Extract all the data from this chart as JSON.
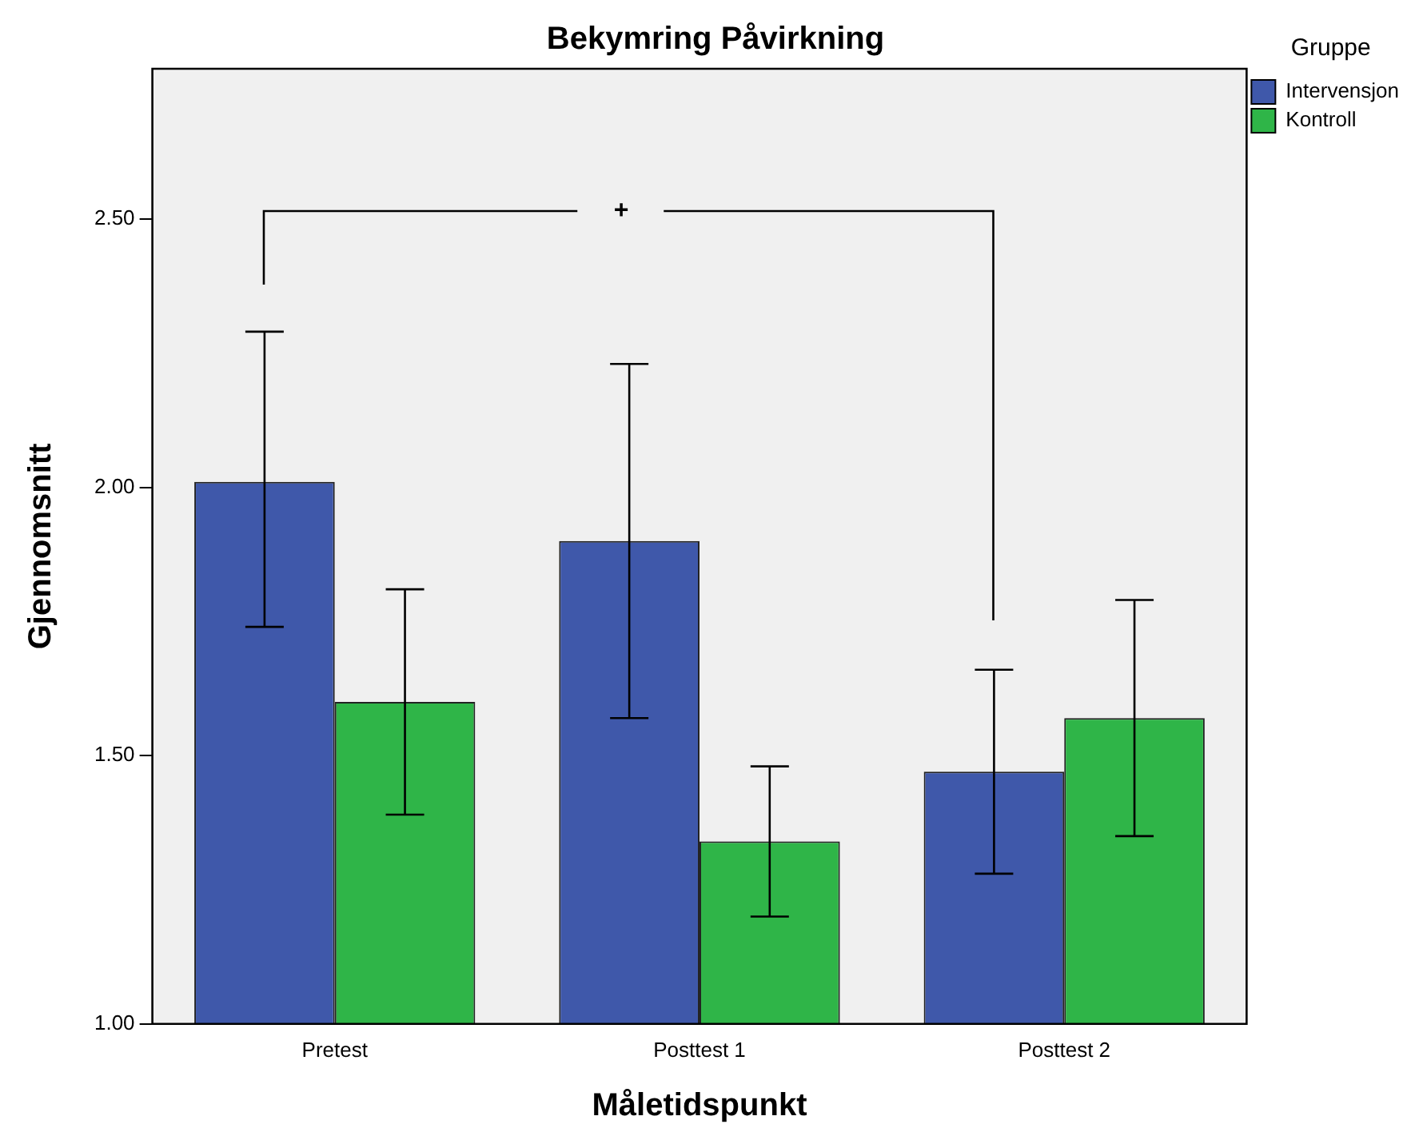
{
  "chart_data": {
    "type": "bar",
    "title": "Bekymring Påvirkning",
    "xlabel": "Måletidspunkt",
    "ylabel": "Gjennomsnitt",
    "legend_title": "Gruppe",
    "legend": "top right",
    "categories": [
      "Pretest",
      "Posttest 1",
      "Posttest 2"
    ],
    "series": [
      {
        "name": "Intervensjon",
        "color": "#3f58aa",
        "values": [
          2.01,
          1.9,
          1.47
        ],
        "errors": [
          [
            1.74,
            2.29
          ],
          [
            1.57,
            2.23
          ],
          [
            1.28,
            1.66
          ]
        ]
      },
      {
        "name": "Kontroll",
        "color": "#2fb548",
        "values": [
          1.6,
          1.34,
          1.57
        ],
        "errors": [
          [
            1.39,
            1.81
          ],
          [
            1.2,
            1.48
          ],
          [
            1.35,
            1.79
          ]
        ]
      }
    ],
    "ylim": [
      1,
      2.78
    ],
    "yticks": [
      {
        "value": 1,
        "label": "1.00"
      },
      {
        "value": 1.5,
        "label": "1.50"
      },
      {
        "value": 2,
        "label": "2.00"
      },
      {
        "value": 2.5,
        "label": "2.50"
      }
    ],
    "grid": false,
    "annotations": [
      "+"
    ]
  }
}
